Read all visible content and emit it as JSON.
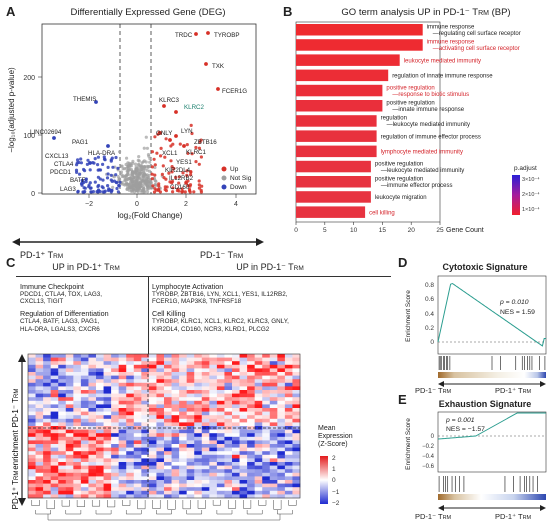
{
  "panels": [
    "A",
    "B",
    "C",
    "D",
    "E"
  ],
  "volcano": {
    "title": "Differentially Expressed Gene (DEG)",
    "xlabel": "log₂(Fold Change)",
    "ylabel": "−log₁₀(adjusted p-value)",
    "xticks": [
      "−2",
      "0",
      "2",
      "4"
    ],
    "yticks": [
      "0",
      "100",
      "200"
    ],
    "legend": [
      "Up",
      "Not Sig",
      "Down"
    ],
    "legend_colors": [
      "#d73027",
      "#9e9e9e",
      "#3343b8"
    ],
    "genes_up": [
      "TRDC",
      "TYROBP",
      "TXK",
      "FCER1G",
      "KLRC3",
      "KLRC2",
      "LYN",
      "ZBTB16",
      "GNLY",
      "KLRC1",
      "XCL1",
      "YES1",
      "KIR2DL4",
      "IL12RB2",
      "CD160"
    ],
    "genes_down": [
      "THEMIS",
      "LINC02694",
      "PAG1",
      "CXCL13",
      "HLA-DRA",
      "CTLA4",
      "PDCD1",
      "BATF",
      "LAG3"
    ],
    "arrow_left": "PD-1⁺ T",
    "arrow_right": "PD-1⁻ T",
    "arrow_sub": "RM"
  },
  "go": {
    "title": "GO term analysis UP in PD-1⁻ T",
    "title_sub": "RM",
    "title_end": " (BP)",
    "xlabel": "Gene Count",
    "xticks": [
      "0",
      "5",
      "10",
      "15",
      "20",
      "25"
    ],
    "legend_title": "p.adjust",
    "legend_ticks": [
      "3×10⁻⁴",
      "2×10⁻⁴",
      "1×10⁻⁴"
    ],
    "terms": [
      {
        "l1": "immune response",
        "l2": "—regulating cell surface receptor",
        "count": 22,
        "red": false
      },
      {
        "l1": "immune response",
        "l2": "—activating cell surface receptor",
        "count": 22,
        "red": true
      },
      {
        "l1": "leukocyte mediated immunity",
        "l2": "",
        "count": 18,
        "red": true
      },
      {
        "l1": "regulation of innate immune response",
        "l2": "",
        "count": 16,
        "red": false
      },
      {
        "l1": "positive regulation",
        "l2": "—response to biotic stimulus",
        "count": 15,
        "red": true
      },
      {
        "l1": "positive regulation",
        "l2": "—innate immune response",
        "count": 15,
        "red": false
      },
      {
        "l1": "regulation",
        "l2": "—leukocyte mediated immunity",
        "count": 14,
        "red": false
      },
      {
        "l1": "regulation of immune effector process",
        "l2": "",
        "count": 14,
        "red": false
      },
      {
        "l1": "lymphocyte mediated immunity",
        "l2": "",
        "count": 14,
        "red": true
      },
      {
        "l1": "positive regulation",
        "l2": "—leukocyte mediated immunity",
        "count": 13,
        "red": false
      },
      {
        "l1": "positive regulation",
        "l2": "—immune effector process",
        "count": 13,
        "red": false
      },
      {
        "l1": "leukocyte migration",
        "l2": "",
        "count": 13,
        "red": false
      },
      {
        "l1": "cell killing",
        "l2": "",
        "count": 12,
        "red": true
      }
    ]
  },
  "heatmap": {
    "left_header": "UP in PD-1⁺ T",
    "right_header": "UP in PD-1⁻ T",
    "header_sub": "RM",
    "left_groups": [
      {
        "title": "Immune Checkpoint",
        "genes": [
          "PDCD1, CTLA4, TOX, LAG3,",
          "CXCL13, TIGIT"
        ]
      },
      {
        "title": "Regulation of Differentiation",
        "genes": [
          "CTLA4, BATF, LAG3, PAG1,",
          "HLA-DRA, LGALS3, CXCR6"
        ]
      }
    ],
    "right_groups": [
      {
        "title": "Lymphocyte Activation",
        "genes": [
          "TYROBP, ZBTB16, LYN, XCL1, YES1, IL12RB2,",
          "FCER1G, MAP3K8, TNFRSF18"
        ]
      },
      {
        "title": "Cell Killing",
        "genes": [
          "TYROBP, KLRC1, XCL1, KLRC2, KLRC3, GNLY,",
          "KIR2DL4, CD160, NCR3, KLRD1, PLCG2"
        ]
      }
    ],
    "row_label_top": "PD-1⁻ T",
    "row_label_bottom": "PD-1⁺ T",
    "row_label_sub": "RM",
    "side_label": "enrichment",
    "legend_title": "Mean Expression (Z-Score)",
    "legend_ticks": [
      "2",
      "1",
      "0",
      "−1",
      "−2"
    ]
  },
  "gsea_cytotoxic": {
    "title": "Cytotoxic Signature",
    "ylabel": "Enrichment Score",
    "yticks": [
      "0.8",
      "0.6",
      "0.4",
      "0.2",
      "0"
    ],
    "p": "p = 0.010",
    "nes": "NES = 1.59",
    "left": "PD-1⁻ T",
    "right": "PD-1⁺ T",
    "sub": "RM"
  },
  "gsea_exhaustion": {
    "title": "Exhaustion Signature",
    "ylabel": "Enrichment Score",
    "yticks": [
      "0",
      "−0.2",
      "−0.4",
      "−0.6"
    ],
    "p": "p = 0.001",
    "nes": "NES = −1.57",
    "left": "PD-1⁻ T",
    "right": "PD-1⁺ T",
    "sub": "RM"
  }
}
